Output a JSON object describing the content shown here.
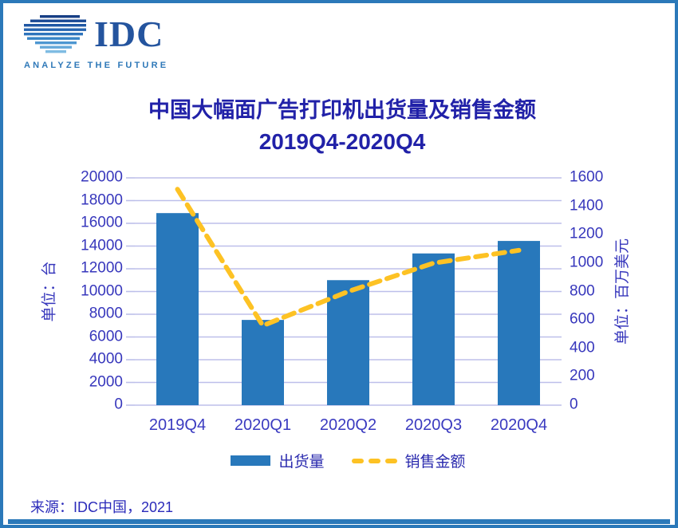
{
  "logo": {
    "text": "IDC",
    "tagline": "ANALYZE THE FUTURE"
  },
  "title": "中国大幅面广告打印机出货量及销售金额",
  "subtitle": "2019Q4-2020Q4",
  "source": "来源：IDC中国，2021",
  "axes": {
    "left_unit_label": "单位：台",
    "right_unit_label": "单位：百万美元"
  },
  "colors": {
    "bar": "#2878bb",
    "line": "#fdc224",
    "gridline": "#bdbfea",
    "title_text": "#2121a8",
    "tick_text": "#3737bc",
    "border": "#2b79b9",
    "logo_navy": "#24549e",
    "logo_light_blue": "#2e78b8"
  },
  "chart_data": {
    "type": "bar+line",
    "title": "中国大幅面广告打印机出货量及销售金额 2019Q4-2020Q4",
    "categories": [
      "2019Q4",
      "2020Q1",
      "2020Q2",
      "2020Q3",
      "2020Q4"
    ],
    "series": [
      {
        "name": "出货量",
        "type": "bar",
        "axis": "left",
        "unit": "台",
        "values": [
          16900,
          7500,
          11000,
          13350,
          14450
        ]
      },
      {
        "name": "销售金额",
        "type": "line",
        "style": "dashed",
        "axis": "right",
        "unit": "百万美元",
        "values": [
          1520,
          560,
          800,
          1000,
          1090
        ]
      }
    ],
    "left_axis": {
      "label": "单位：台",
      "min": 0,
      "max": 20000,
      "step": 2000,
      "ticks": [
        0,
        2000,
        4000,
        6000,
        8000,
        10000,
        12000,
        14000,
        16000,
        18000,
        20000
      ]
    },
    "right_axis": {
      "label": "单位：百万美元",
      "min": 0,
      "max": 1600,
      "step": 200,
      "ticks": [
        0,
        200,
        400,
        600,
        800,
        1000,
        1200,
        1400,
        1600
      ]
    },
    "grid": true,
    "legend_position": "bottom"
  }
}
